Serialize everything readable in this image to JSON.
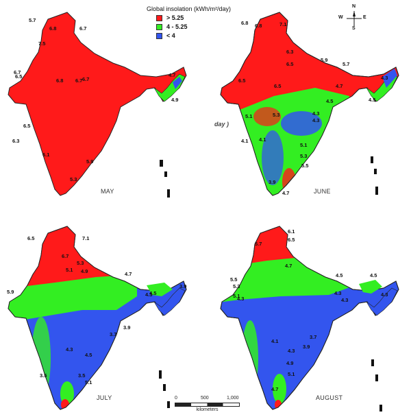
{
  "legend": {
    "title": "Global insolation (kWh/m²/day)",
    "classes": [
      {
        "label": "> 5.25",
        "color": "#ff1a1a"
      },
      {
        "label": "4 - 5.25",
        "color": "#33ee22"
      },
      {
        "label": "< 4",
        "color": "#3355ee"
      }
    ]
  },
  "compass": {
    "n": "N",
    "s": "S",
    "e": "E",
    "w": "W"
  },
  "stray_label": "day )",
  "scale": {
    "ticks": [
      "0",
      "500",
      "1,000"
    ],
    "unit": "kilometers"
  },
  "colors": {
    "high": "#ff1a1a",
    "mid": "#33ee22",
    "low": "#3355ee",
    "outline": "#222222"
  },
  "maps": [
    {
      "month": "MAY",
      "dominant_class": "> 5.25",
      "values": [
        "5.7",
        "6.8",
        "6.7",
        "7.5",
        "6.7",
        "6.5",
        "6.8",
        "6.7",
        "6.7",
        "6.3",
        "6.1",
        "6.5",
        "5.3",
        "5.9",
        "4.7",
        "4.9"
      ]
    },
    {
      "month": "JUNE",
      "dominant_class": "> 5.25",
      "values": [
        "6.8",
        "6.8",
        "7.1",
        "6.3",
        "6.5",
        "5.9",
        "5.7",
        "4.3",
        "6.5",
        "6.5",
        "4.7",
        "5.1",
        "5.3",
        "4.5",
        "4.3",
        "4.1",
        "4.1",
        "5.1",
        "5.3",
        "5.5",
        "3.9",
        "4.7",
        "4.3",
        "4.5"
      ]
    },
    {
      "month": "JULY",
      "dominant_class": "< 4",
      "values": [
        "6.5",
        "7.1",
        "6.7",
        "5.3",
        "5.1",
        "4.9",
        "4.7",
        "5.9",
        "3.9",
        "4.3",
        "3.9",
        "3.7",
        "4.3",
        "4.5",
        "3.5",
        "3.5",
        "5.1",
        "4.5"
      ]
    },
    {
      "month": "AUGUST",
      "dominant_class": "< 4",
      "values": [
        "6.1",
        "6.5",
        "5.7",
        "4.7",
        "5.5",
        "5.3",
        "5.1",
        "4.5",
        "4.5",
        "4.3",
        "4.3",
        "4.1",
        "3.7",
        "3.9",
        "4.3",
        "4.9",
        "5.1",
        "4.7",
        "4.3",
        "4.3"
      ]
    }
  ]
}
